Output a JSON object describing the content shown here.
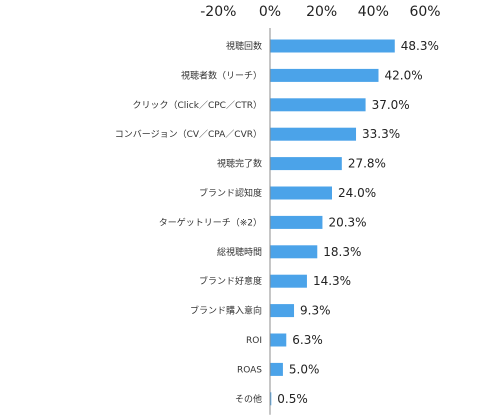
{
  "chart_data": {
    "type": "bar",
    "orientation": "horizontal",
    "title": "",
    "xlabel": "",
    "ylabel": "",
    "xlim": [
      -20,
      60
    ],
    "x_ticks": [
      -20,
      0,
      20,
      40,
      60
    ],
    "x_tick_labels": [
      "-20%",
      "0%",
      "20%",
      "40%",
      "60%"
    ],
    "grid": false,
    "legend": "none",
    "bar_color": "#4BA3E9",
    "axis_color": "#8C8C8C",
    "categories": [
      "視聴回数",
      "視聴者数（リーチ）",
      "クリック（Click／CPC／CTR）",
      "コンバージョン（CV／CPA／CVR）",
      "視聴完了数",
      "ブランド認知度",
      "ターゲットリーチ（※2）",
      "総視聴時間",
      "ブランド好意度",
      "ブランド購入意向",
      "ROI",
      "ROAS",
      "その他"
    ],
    "values": [
      48.3,
      42.0,
      37.0,
      33.3,
      27.8,
      24.0,
      20.3,
      18.3,
      14.3,
      9.3,
      6.3,
      5.0,
      0.5
    ],
    "value_labels": [
      "48.3%",
      "42.0%",
      "37.0%",
      "33.3%",
      "27.8%",
      "24.0%",
      "20.3%",
      "18.3%",
      "14.3%",
      "9.3%",
      "6.3%",
      "5.0%",
      "0.5%"
    ]
  }
}
